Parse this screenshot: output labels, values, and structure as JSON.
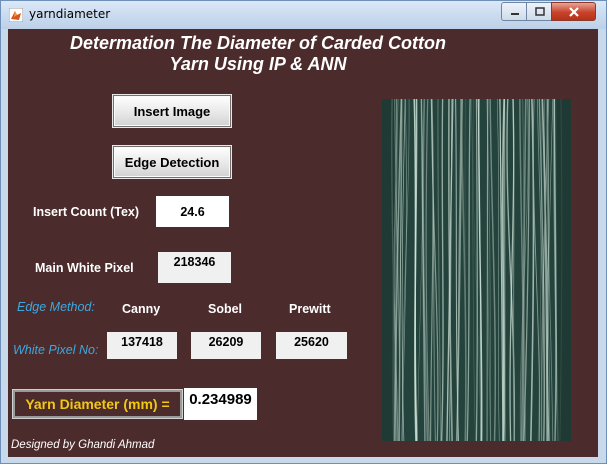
{
  "window": {
    "title": "yarndiameter",
    "icon": "matlab-icon"
  },
  "heading": {
    "line1": "Determation The Diameter of Carded Cotton",
    "line2": "Yarn Using IP & ANN"
  },
  "buttons": {
    "insert_image": "Insert Image",
    "edge_detection": "Edge Detection"
  },
  "count": {
    "label": "Insert Count (Tex)",
    "value": "24.6"
  },
  "main_white": {
    "label": "Main White Pixel",
    "value": "218346"
  },
  "edge": {
    "method_label": "Edge Method:",
    "white_pixel_label": "White Pixel No:",
    "methods": [
      {
        "name": "Canny",
        "value": "137418"
      },
      {
        "name": "Sobel",
        "value": "26209"
      },
      {
        "name": "Prewitt",
        "value": "25620"
      }
    ]
  },
  "result": {
    "label": "Yarn Diameter (mm) =",
    "value": "0.234989"
  },
  "credit": "Designed by Ghandi Ahmad",
  "colors": {
    "background": "#4b2b2b",
    "label_text": "#ffffff",
    "italic_label": "#3ea8e0",
    "result_label": "#f2c811",
    "image_base": "#24433c"
  }
}
